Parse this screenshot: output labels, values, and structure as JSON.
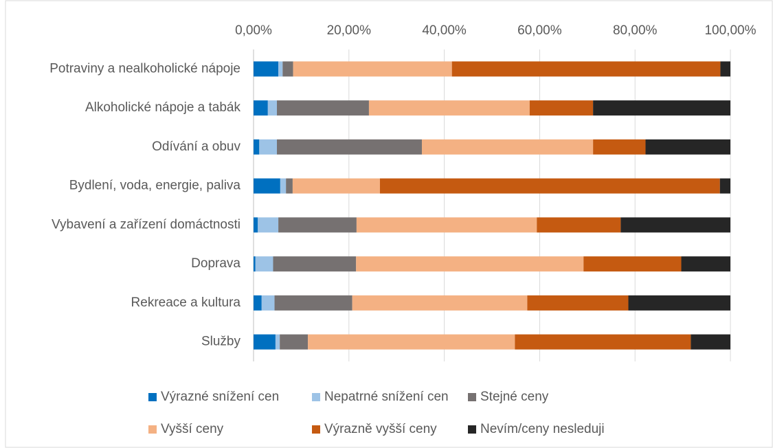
{
  "chart_data": {
    "type": "bar",
    "orientation": "horizontal",
    "stacked": true,
    "categories": [
      "Potraviny a nealkoholické nápoje",
      "Alkoholické nápoje a tabák",
      "Odívání a obuv",
      "Bydlení, voda, energie, paliva",
      "Vybavení a zařízení domáctnosti",
      "Doprava",
      "Rekreace a kultura",
      "Služby"
    ],
    "series": [
      {
        "name": "Výrazné snížení cen",
        "color": "#0070c0",
        "values": [
          5.2,
          3.0,
          1.2,
          5.6,
          0.9,
          0.4,
          1.7,
          4.6
        ]
      },
      {
        "name": "Nepatrné snížení cen",
        "color": "#9dc3e6",
        "values": [
          0.9,
          1.9,
          3.7,
          1.2,
          4.3,
          3.7,
          2.7,
          0.9
        ]
      },
      {
        "name": "Stejné ceny",
        "color": "#767171",
        "values": [
          2.2,
          19.3,
          30.4,
          1.4,
          16.4,
          17.4,
          16.3,
          5.9
        ]
      },
      {
        "name": "Vyšší ceny",
        "color": "#f4b183",
        "values": [
          33.3,
          33.7,
          35.9,
          18.3,
          37.8,
          47.7,
          36.7,
          43.4
        ]
      },
      {
        "name": "Výrazně vyšší ceny",
        "color": "#c55a11",
        "values": [
          56.3,
          13.3,
          11.0,
          71.3,
          17.6,
          20.5,
          21.2,
          36.9
        ]
      },
      {
        "name": "Nevím/ceny nesleduji",
        "color": "#262626",
        "values": [
          2.1,
          28.8,
          17.8,
          2.2,
          23.0,
          10.3,
          21.4,
          8.3
        ]
      }
    ],
    "xlim": [
      0,
      100
    ],
    "xticks": [
      {
        "value": 0,
        "label": "0,00%"
      },
      {
        "value": 20,
        "label": "20,00%"
      },
      {
        "value": 40,
        "label": "40,00%"
      },
      {
        "value": 60,
        "label": "60,00%"
      },
      {
        "value": 80,
        "label": "80,00%"
      },
      {
        "value": 100,
        "label": "100,00%"
      }
    ],
    "grid": true,
    "legend": "bottom"
  }
}
